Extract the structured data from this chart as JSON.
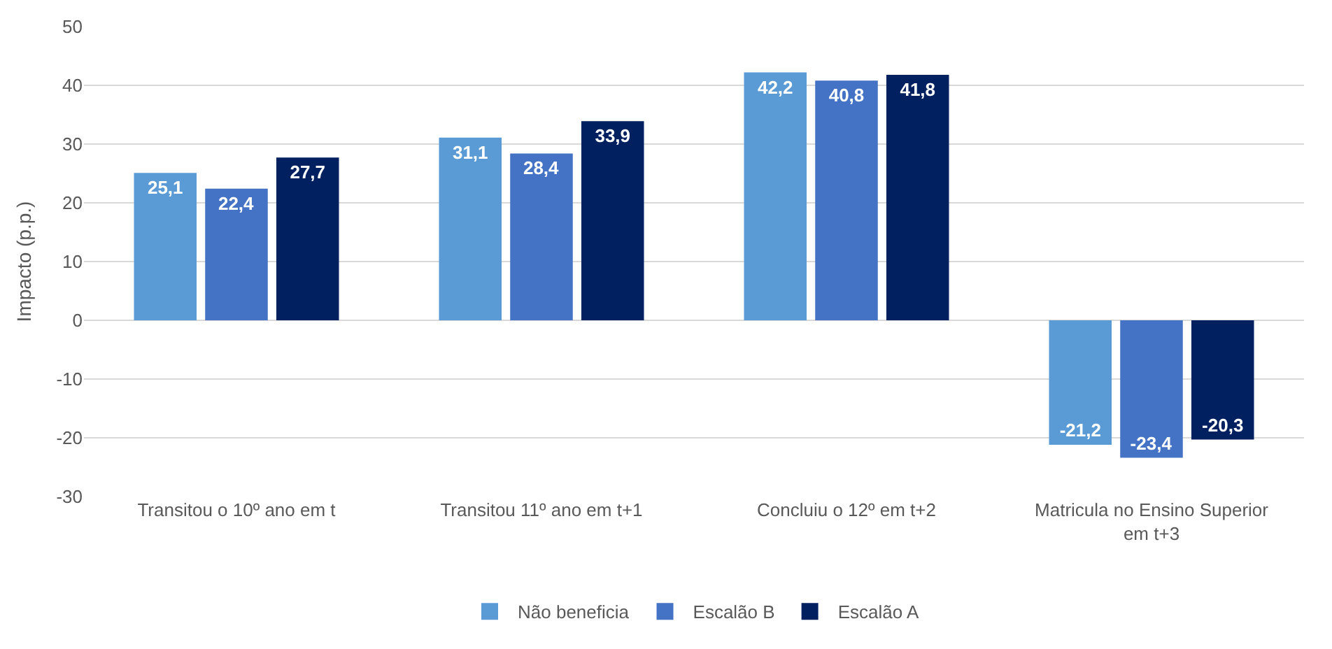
{
  "chart_data": {
    "type": "bar",
    "ylabel": "Impacto (p.p.)",
    "categories": [
      "Transitou o 10º ano em t",
      "Transitou 11º ano em t+1",
      "Concluiu o 12º em t+2",
      "Matricula no Ensino Superior em t+3"
    ],
    "series": [
      {
        "name": "Não beneficia",
        "color": "#5b9bd5",
        "values": [
          25.1,
          31.1,
          42.2,
          -21.2
        ],
        "value_labels": [
          "25,1",
          "31,1",
          "42,2",
          "-21,2"
        ]
      },
      {
        "name": "Escalão B",
        "color": "#4472c4",
        "values": [
          22.4,
          28.4,
          40.8,
          -23.4
        ],
        "value_labels": [
          "22,4",
          "28,4",
          "40,8",
          "-23,4"
        ]
      },
      {
        "name": "Escalão A",
        "color": "#002060",
        "values": [
          27.7,
          33.9,
          41.8,
          -20.3
        ],
        "value_labels": [
          "27,7",
          "33,9",
          "41,8",
          "-20,3"
        ]
      }
    ],
    "ylim": [
      -30,
      50
    ],
    "yticks": [
      -30,
      -20,
      -10,
      0,
      10,
      20,
      30,
      40,
      50
    ],
    "grid": "y",
    "legend": "bottom"
  }
}
